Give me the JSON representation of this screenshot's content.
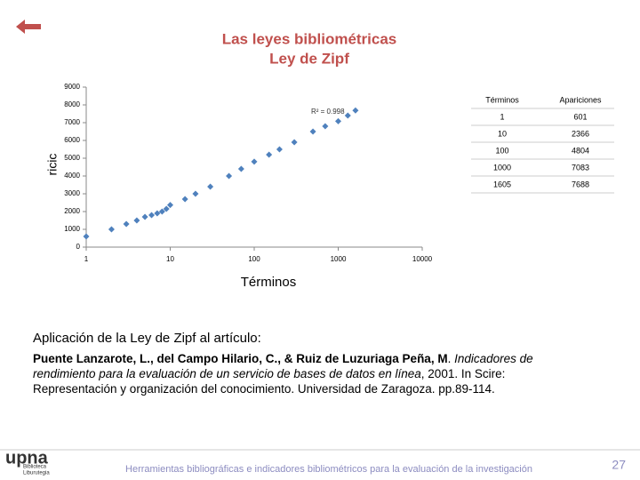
{
  "header": {
    "title": "Las leyes bibliométricas",
    "subtitle": "Ley de Zipf"
  },
  "chart_data": {
    "type": "scatter",
    "log_x": true,
    "color": "#4f81bd",
    "x_label": "Términos",
    "y_label": "ricic",
    "annotation": "R² = 0.998",
    "x": [
      1,
      2,
      3,
      4,
      5,
      6,
      7,
      8,
      9,
      10,
      15,
      20,
      30,
      50,
      70,
      100,
      150,
      200,
      300,
      500,
      700,
      1000,
      1300,
      1605
    ],
    "values": [
      601,
      1000,
      1300,
      1500,
      1700,
      1800,
      1900,
      2000,
      2150,
      2366,
      2700,
      3000,
      3400,
      4000,
      4400,
      4804,
      5200,
      5500,
      5900,
      6500,
      6800,
      7083,
      7400,
      7688
    ],
    "xlim": [
      1,
      10000
    ],
    "ylim": [
      0,
      9000
    ],
    "xticks": [
      1,
      10,
      100,
      1000,
      10000
    ],
    "yticks": [
      0,
      1000,
      2000,
      3000,
      4000,
      5000,
      6000,
      7000,
      8000,
      9000
    ]
  },
  "table": {
    "columns": [
      "Términos",
      "Apariciones"
    ],
    "rows": [
      [
        1,
        601
      ],
      [
        10,
        2366
      ],
      [
        100,
        4804
      ],
      [
        1000,
        7083
      ],
      [
        1605,
        7688
      ]
    ]
  },
  "body": {
    "intro": "Aplicación de la Ley de Zipf al artículo:",
    "authors": "Puente Lanzarote, L., del Campo Hilario, C., & Ruiz de Luzuriaga Peña, M",
    "sep": ". ",
    "work": "Indicadores de rendimiento para la evaluación de un servicio de bases de datos en línea",
    "rest": ", 2001. In Scire: Representación y organización del conocimiento. Universidad de Zaragoza. pp.89-114."
  },
  "footer": {
    "logo": "upna",
    "logo_line1": "Biblioteca",
    "logo_line2": "Liburutegia",
    "text": "Herramientas bibliográficas e indicadores bibliométricos para la evaluación de la investigación",
    "page": "27"
  }
}
